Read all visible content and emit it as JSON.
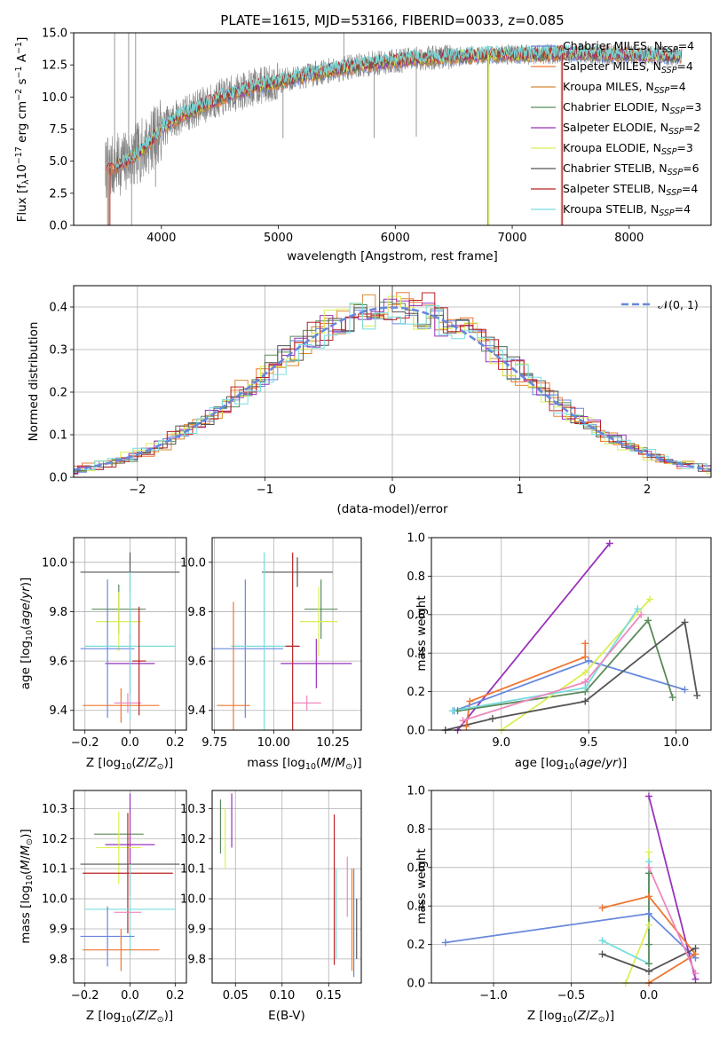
{
  "chart_data": [
    {
      "type": "line",
      "title": "PLATE=1615, MJD=53166, FIBERID=0033, z=0.085",
      "xlabel": "wavelength [Angstrom, rest frame]",
      "ylabel": "Flux [f_λ 10^-17 erg cm^-2 s^-1 A^-1]",
      "xlim": [
        3250,
        8700
      ],
      "ylim": [
        0,
        15
      ],
      "xticks": [
        "4000",
        "5000",
        "6000",
        "7000",
        "8000"
      ],
      "yticks": [
        "0.0",
        "2.5",
        "5.0",
        "7.5",
        "10.0",
        "12.5",
        "15.0"
      ],
      "legend_position": "top-right",
      "grid": false,
      "series": [
        {
          "name": "Chabrier MILES, N_SSP=4"
        },
        {
          "name": "Salpeter MILES, N_SSP=4"
        },
        {
          "name": "Kroupa MILES, N_SSP=4"
        },
        {
          "name": "Chabrier ELODIE, N_SSP=3"
        },
        {
          "name": "Salpeter ELODIE, N_SSP=2"
        },
        {
          "name": "Kroupa ELODIE, N_SSP=3"
        },
        {
          "name": "Chabrier STELIB, N_SSP=6"
        },
        {
          "name": "Salpeter STELIB, N_SSP=4"
        },
        {
          "name": "Kroupa STELIB, N_SSP=4"
        }
      ],
      "continuum": {
        "x": [
          3500,
          3600,
          3700,
          3800,
          3900,
          4000,
          4100,
          4200,
          4300,
          4400,
          4500,
          4600,
          4700,
          4800,
          4900,
          5000,
          5200,
          5400,
          5600,
          5800,
          6000,
          6200,
          6400,
          6600,
          6800,
          7000,
          7200,
          7400,
          7600,
          7800,
          8000,
          8200,
          8400
        ],
        "y": [
          4.3,
          4.6,
          5.0,
          5.6,
          6.5,
          7.5,
          8.2,
          8.7,
          9.1,
          9.5,
          9.9,
          10.2,
          10.5,
          10.8,
          11.0,
          11.2,
          11.6,
          12.0,
          12.3,
          12.6,
          12.8,
          13.0,
          13.1,
          13.2,
          13.3,
          13.3,
          13.3,
          13.4,
          13.4,
          13.3,
          13.3,
          13.2,
          13.2
        ]
      }
    },
    {
      "type": "line",
      "title": "",
      "xlabel": "(data-model)/error",
      "ylabel": "Normed distribution",
      "xlim": [
        -2.5,
        2.5
      ],
      "ylim": [
        0,
        0.45
      ],
      "xticks": [
        "−2",
        "−1",
        "0",
        "1",
        "2"
      ],
      "yticks": [
        "0.0",
        "0.1",
        "0.2",
        "0.3",
        "0.4"
      ],
      "legend_position": "top-right",
      "grid": true,
      "reference": {
        "name": "𝒩(0, 1)",
        "mean": 0,
        "sigma": 1
      },
      "histogram_bin_width": 0.1
    },
    {
      "type": "scatter",
      "xlabel": "Z [log10(Z/Z⊙)]",
      "ylabel": "age  [log10(age/yr)]",
      "xlim": [
        -0.25,
        0.25
      ],
      "ylim": [
        9.32,
        10.1
      ],
      "xticks": [
        "−0.2",
        "0.0",
        "0.2"
      ],
      "yticks": [
        "9.4",
        "9.6",
        "9.8",
        "10.0"
      ],
      "grid": true,
      "errorbars": [
        {
          "x": 0.0,
          "xerr": 0.22,
          "y": 9.96,
          "yerr": 0.08,
          "color": "#555555"
        },
        {
          "x": -0.05,
          "xerr": 0.12,
          "y": 9.81,
          "yerr": 0.1,
          "color": "#5a8a5a"
        },
        {
          "x": 0.0,
          "xerr": 0.11,
          "y": 9.59,
          "yerr": 0.12,
          "color": "#9933bb"
        },
        {
          "x": -0.05,
          "xerr": 0.1,
          "y": 9.76,
          "yerr": 0.12,
          "color": "#ddee55"
        },
        {
          "x": -0.1,
          "xerr": 0.12,
          "y": 9.65,
          "yerr": 0.28,
          "color": "#6688dd"
        },
        {
          "x": 0.0,
          "xerr": 0.2,
          "y": 9.66,
          "yerr": 0.3,
          "color": "#77dddd"
        },
        {
          "x": -0.04,
          "xerr": 0.17,
          "y": 9.42,
          "yerr": 0.07,
          "color": "#ee7733"
        },
        {
          "x": -0.01,
          "xerr": 0.06,
          "y": 9.43,
          "yerr": 0.04,
          "color": "#ee88bb"
        },
        {
          "x": 0.04,
          "xerr": 0.03,
          "y": 9.6,
          "yerr": 0.22,
          "color": "#bb2222"
        }
      ]
    },
    {
      "type": "scatter",
      "xlabel": "mass [log10(M/M⊙)]",
      "ylabel": "",
      "xlim": [
        9.74,
        10.37
      ],
      "ylim": [
        9.32,
        10.1
      ],
      "xticks": [
        "9.75",
        "10.00",
        "10.25"
      ],
      "yticks": [
        "9.4",
        "9.6",
        "9.8",
        "10.0"
      ],
      "grid": true,
      "errorbars": [
        {
          "x": 10.1,
          "xerr": 0.15,
          "y": 9.96,
          "yerr": 0.06,
          "color": "#555555"
        },
        {
          "x": 10.2,
          "xerr": 0.07,
          "y": 9.81,
          "yerr": 0.12,
          "color": "#5a8a5a"
        },
        {
          "x": 10.18,
          "xerr": 0.15,
          "y": 9.59,
          "yerr": 0.1,
          "color": "#9933bb"
        },
        {
          "x": 10.19,
          "xerr": 0.08,
          "y": 9.76,
          "yerr": 0.14,
          "color": "#ddee55"
        },
        {
          "x": 9.88,
          "xerr": 0.16,
          "y": 9.65,
          "yerr": 0.28,
          "color": "#6688dd"
        },
        {
          "x": 9.96,
          "xerr": 0.14,
          "y": 9.66,
          "yerr": 0.38,
          "color": "#77dddd"
        },
        {
          "x": 9.83,
          "xerr": 0.07,
          "y": 9.42,
          "yerr": 0.42,
          "color": "#ee7733"
        },
        {
          "x": 10.14,
          "xerr": 0.06,
          "y": 9.43,
          "yerr": 0.03,
          "color": "#ee88bb"
        },
        {
          "x": 10.08,
          "xerr": 0.03,
          "y": 9.66,
          "yerr": 0.38,
          "color": "#bb2222"
        }
      ]
    },
    {
      "type": "line",
      "xlabel": "age  [log10(age/yr)]",
      "ylabel": "mass weight",
      "xlim": [
        8.6,
        10.2
      ],
      "ylim": [
        0,
        1
      ],
      "xticks": [
        "9.0",
        "9.5",
        "10.0"
      ],
      "yticks": [
        "0.0",
        "0.2",
        "0.4",
        "0.6",
        "0.8",
        "1.0"
      ],
      "grid": true,
      "series": [
        {
          "color": "#9933bb",
          "x": [
            8.75,
            9.62
          ],
          "y": [
            0.0,
            0.97
          ]
        },
        {
          "color": "#ee7733",
          "x": [
            8.8,
            8.82,
            9.48,
            9.48
          ],
          "y": [
            0.02,
            0.15,
            0.38,
            0.45
          ]
        },
        {
          "color": "#6688dd",
          "x": [
            8.73,
            9.5,
            10.05
          ],
          "y": [
            0.1,
            0.36,
            0.21
          ]
        },
        {
          "color": "#5a8a5a",
          "x": [
            8.75,
            9.48,
            9.84,
            9.98
          ],
          "y": [
            0.1,
            0.2,
            0.57,
            0.17
          ]
        },
        {
          "color": "#ddee55",
          "x": [
            9.0,
            9.48,
            9.85
          ],
          "y": [
            0.0,
            0.3,
            0.68
          ]
        },
        {
          "color": "#77dddd",
          "x": [
            8.72,
            9.48,
            9.78
          ],
          "y": [
            0.1,
            0.22,
            0.63
          ]
        },
        {
          "color": "#555555",
          "x": [
            8.68,
            8.95,
            9.48,
            10.05,
            10.12
          ],
          "y": [
            0.0,
            0.06,
            0.15,
            0.56,
            0.18
          ]
        },
        {
          "color": "#ee88bb",
          "x": [
            8.78,
            9.48,
            9.8
          ],
          "y": [
            0.05,
            0.25,
            0.6
          ]
        }
      ]
    },
    {
      "type": "scatter",
      "xlabel": "Z [log10(Z/Z⊙)]",
      "ylabel": "mass [log10(M/M⊙)]",
      "xlim": [
        -0.25,
        0.25
      ],
      "ylim": [
        9.72,
        10.36
      ],
      "xticks": [
        "−0.2",
        "0.0",
        "0.2"
      ],
      "yticks": [
        "9.8",
        "9.9",
        "10.0",
        "10.1",
        "10.2",
        "10.3"
      ],
      "grid": true,
      "errorbars": [
        {
          "x": -0.05,
          "xerr": 0.11,
          "y": 10.215,
          "yerr": 0.0,
          "color": "#5a8a5a"
        },
        {
          "x": 0.0,
          "xerr": 0.11,
          "y": 10.18,
          "yerr": 0.17,
          "color": "#9933bb"
        },
        {
          "x": -0.05,
          "xerr": 0.1,
          "y": 10.17,
          "yerr": 0.12,
          "color": "#ddee55"
        },
        {
          "x": 0.0,
          "xerr": 0.22,
          "y": 10.115,
          "yerr": 0.0,
          "color": "#555555"
        },
        {
          "x": -0.01,
          "xerr": 0.2,
          "y": 10.085,
          "yerr": 0.2,
          "color": "#bb2222"
        },
        {
          "x": 0.0,
          "xerr": 0.2,
          "y": 9.965,
          "yerr": 0.15,
          "color": "#77dddd"
        },
        {
          "x": -0.1,
          "xerr": 0.12,
          "y": 9.875,
          "yerr": 0.1,
          "color": "#6688dd"
        },
        {
          "x": -0.04,
          "xerr": 0.17,
          "y": 9.83,
          "yerr": 0.07,
          "color": "#ee7733"
        },
        {
          "x": -0.01,
          "xerr": 0.06,
          "y": 9.955,
          "yerr": 0.0,
          "color": "#ee88bb"
        }
      ]
    },
    {
      "type": "scatter",
      "xlabel": "E(B-V)",
      "ylabel": "",
      "xlim": [
        0.025,
        0.185
      ],
      "ylim": [
        9.72,
        10.36
      ],
      "xticks": [
        "0.05",
        "0.10",
        "0.15"
      ],
      "yticks": [
        "9.8",
        "9.9",
        "10.0",
        "10.1",
        "10.2",
        "10.3"
      ],
      "grid": true,
      "errorbars": [
        {
          "x": 0.034,
          "y": 10.24,
          "yerr": 0.09,
          "color": "#5a8a5a"
        },
        {
          "x": 0.039,
          "y": 10.2,
          "yerr": 0.1,
          "color": "#ddee55"
        },
        {
          "x": 0.046,
          "y": 10.26,
          "yerr": 0.09,
          "color": "#9933bb"
        },
        {
          "x": 0.156,
          "y": 10.03,
          "yerr": 0.25,
          "color": "#bb2222"
        },
        {
          "x": 0.158,
          "y": 9.95,
          "yerr": 0.15,
          "color": "#77dddd"
        },
        {
          "x": 0.17,
          "y": 10.04,
          "yerr": 0.1,
          "color": "#ee88bb"
        },
        {
          "x": 0.175,
          "y": 9.93,
          "yerr": 0.17,
          "color": "#ee7733"
        },
        {
          "x": 0.177,
          "y": 9.92,
          "yerr": 0.18,
          "color": "#6688dd"
        },
        {
          "x": 0.18,
          "y": 9.9,
          "yerr": 0.1,
          "color": "#555555"
        }
      ]
    },
    {
      "type": "line",
      "xlabel": "Z [log10(Z/Z⊙)]",
      "ylabel": "mass weight",
      "xlim": [
        -1.4,
        0.4
      ],
      "ylim": [
        0,
        1
      ],
      "xticks": [
        "−1.0",
        "−0.5",
        "0.0"
      ],
      "yticks": [
        "0.0",
        "0.2",
        "0.4",
        "0.6",
        "0.8",
        "1.0"
      ],
      "grid": true,
      "series": [
        {
          "color": "#6688dd",
          "x": [
            -1.31,
            0.0,
            0.3
          ],
          "y": [
            0.21,
            0.36,
            0.13
          ]
        },
        {
          "color": "#9933bb",
          "x": [
            0.0,
            0.3
          ],
          "y": [
            0.97,
            0.02
          ]
        },
        {
          "color": "#ee7733",
          "x": [
            -0.3,
            0.0,
            0.3,
            0.0
          ],
          "y": [
            0.39,
            0.45,
            0.15,
            0.0
          ]
        },
        {
          "color": "#ddee55",
          "x": [
            -0.15,
            0.0,
            0.0
          ],
          "y": [
            0.0,
            0.3,
            0.68
          ]
        },
        {
          "color": "#77dddd",
          "x": [
            -0.3,
            0.0,
            0.0
          ],
          "y": [
            0.22,
            0.1,
            0.63
          ]
        },
        {
          "color": "#555555",
          "x": [
            -0.3,
            0.0,
            0.3
          ],
          "y": [
            0.15,
            0.06,
            0.18
          ]
        },
        {
          "color": "#5a8a5a",
          "x": [
            0.0,
            0.0,
            0.0
          ],
          "y": [
            0.1,
            0.2,
            0.57
          ]
        },
        {
          "color": "#ee88bb",
          "x": [
            0.0,
            0.3
          ],
          "y": [
            0.6,
            0.05
          ]
        }
      ]
    }
  ],
  "colors": {
    "data_spectrum": "#808080",
    "Chabrier MILES": "#6688dd",
    "Salpeter MILES": "#ee7733",
    "Kroupa MILES": "#dd8833",
    "Chabrier ELODIE": "#5a8a5a",
    "Salpeter ELODIE": "#9933bb",
    "Kroupa ELODIE": "#ddee55",
    "Chabrier STELIB": "#555555",
    "Salpeter STELIB": "#bb2222",
    "Kroupa STELIB": "#77dddd",
    "gaussian": "#6688dd"
  }
}
